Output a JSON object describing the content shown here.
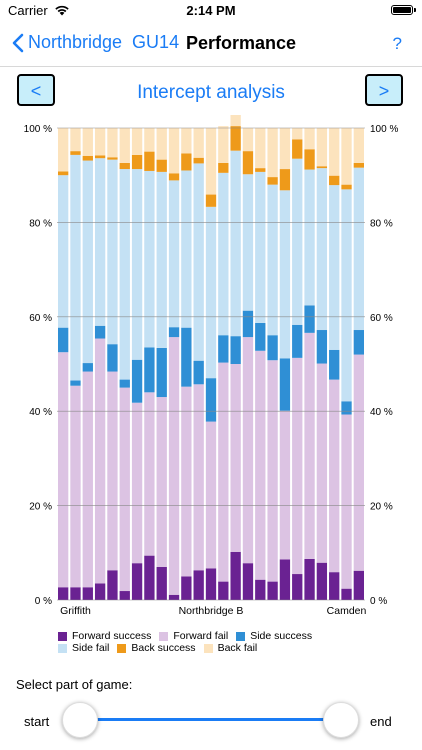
{
  "status": {
    "carrier": "Carrier",
    "time": "2:14 PM"
  },
  "nav": {
    "back_label": "Northbridge  GU14",
    "title": "Performance",
    "help_label": "?"
  },
  "chart_header": {
    "prev_label": "<",
    "next_label": ">",
    "title": "Intercept analysis"
  },
  "chart_data": {
    "type": "bar",
    "stacked": true,
    "ylim": [
      0,
      100
    ],
    "yticks": [
      "0 %",
      "20 %",
      "40 %",
      "60 %",
      "80 %",
      "100 %"
    ],
    "x_tick_labels": [
      {
        "index": 1,
        "label": "Griffith"
      },
      {
        "index": 12,
        "label": "Northbridge B"
      },
      {
        "index": 23,
        "label": "Camden"
      }
    ],
    "legend": [
      "Forward success",
      "Forward fail",
      "Side success",
      "Side fail",
      "Back success",
      "Back fail"
    ],
    "colors": [
      "#6a2292",
      "#dcc3e3",
      "#2f8fd5",
      "#c4e1f4",
      "#ee9a1a",
      "#fce3bd"
    ],
    "series": [
      {
        "name": "Forward success",
        "values": [
          2.7,
          2.7,
          2.7,
          3.5,
          6.3,
          1.9,
          7.8,
          9.4,
          7.0,
          1.1,
          5.0,
          6.3,
          6.7,
          3.9,
          10.2,
          7.8,
          4.3,
          3.9,
          8.6,
          5.5,
          8.7,
          7.9,
          5.9,
          2.4,
          6.2
        ]
      },
      {
        "name": "Forward fail",
        "values": [
          49.8,
          42.7,
          45.7,
          51.9,
          42.1,
          43.1,
          34.0,
          34.6,
          36.0,
          54.6,
          40.2,
          39.4,
          31.1,
          46.4,
          39.8,
          47.9,
          48.5,
          46.9,
          31.5,
          45.8,
          47.9,
          42.2,
          40.8,
          36.9,
          45.8
        ]
      },
      {
        "name": "Side success",
        "values": [
          5.2,
          1.1,
          1.8,
          2.7,
          5.8,
          1.7,
          9.1,
          9.5,
          10.4,
          2.1,
          12.5,
          5.0,
          9.2,
          5.8,
          5.9,
          5.6,
          5.9,
          5.3,
          11.1,
          7.0,
          5.8,
          7.1,
          6.3,
          2.8,
          5.2
        ]
      },
      {
        "name": "Side fail",
        "values": [
          32.3,
          47.8,
          42.9,
          35.5,
          39.1,
          44.6,
          40.4,
          37.4,
          37.3,
          31.1,
          33.3,
          41.8,
          36.3,
          34.4,
          39.3,
          28.9,
          32.0,
          31.9,
          35.6,
          35.2,
          28.8,
          34.3,
          34.9,
          44.9,
          34.4
        ]
      },
      {
        "name": "Back success",
        "values": [
          0.8,
          0.8,
          1.0,
          0.6,
          0.5,
          1.3,
          3.0,
          4.1,
          2.6,
          1.5,
          3.6,
          1.2,
          2.6,
          2.1,
          5.2,
          4.9,
          0.8,
          1.6,
          4.5,
          4.1,
          4.3,
          0.4,
          2.0,
          1.0,
          1.0
        ]
      },
      {
        "name": "Back fail",
        "values": [
          9.2,
          4.9,
          5.9,
          5.8,
          6.2,
          7.4,
          5.7,
          5.0,
          6.7,
          9.6,
          5.4,
          6.3,
          14.1,
          7.8,
          9.6,
          4.9,
          8.5,
          10.4,
          8.7,
          2.4,
          4.5,
          8.1,
          10.1,
          12.0,
          7.4
        ]
      }
    ]
  },
  "legend_rows": [
    [
      "Forward success",
      "Forward fail",
      "Side success"
    ],
    [
      "Side fail",
      "Back success",
      "Back fail"
    ]
  ],
  "slider": {
    "section_label": "Select part of game:",
    "start_label": "start",
    "end_label": "end",
    "range": [
      0,
      1
    ]
  }
}
